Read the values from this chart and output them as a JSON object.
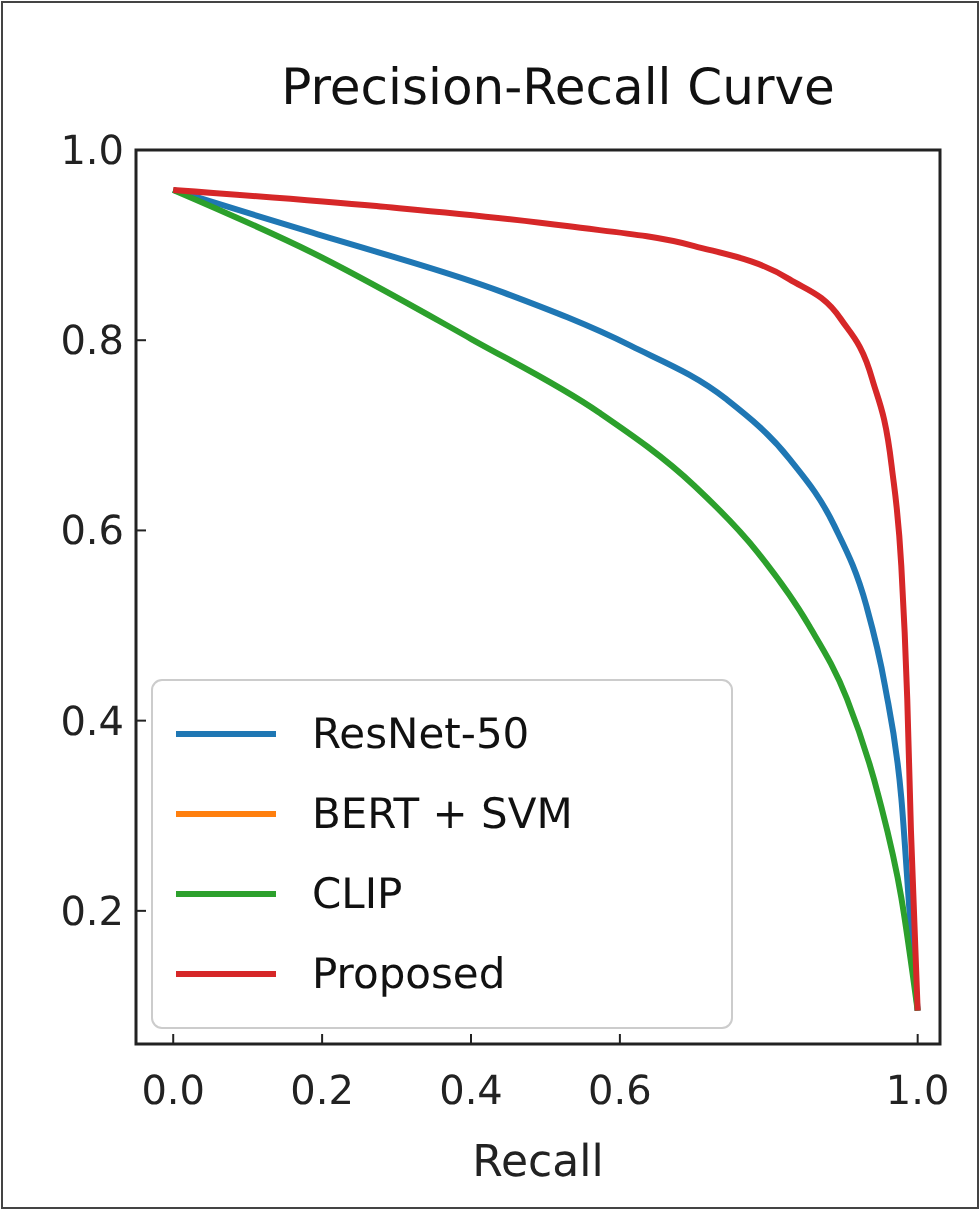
{
  "chart_data": {
    "type": "line",
    "title": "Precision-Recall Curve",
    "xlabel": "Recall",
    "xlim": [
      -0.05,
      1.03
    ],
    "ylim": [
      0.06,
      1.0
    ],
    "xticks": [
      {
        "value": 0,
        "label": "0.0"
      },
      0.2,
      0.4,
      0.6,
      {
        "value": 1,
        "label": "1.0"
      }
    ],
    "yticks": [
      0.2,
      0.4,
      0.6,
      0.8,
      {
        "value": 1,
        "label": "1.0"
      }
    ],
    "grid": false,
    "legend": "bottom left",
    "line_style": "solid",
    "marker": "none",
    "series": [
      {
        "name": "ResNet-50",
        "color": "#1f77b4",
        "x": [
          0,
          0.187,
          0.444,
          0.615,
          0.743,
          0.828,
          0.888,
          0.931,
          0.956,
          0.978,
          0.991,
          1.0
        ],
        "values": [
          0.958,
          0.913,
          0.85,
          0.794,
          0.738,
          0.675,
          0.605,
          0.521,
          0.437,
          0.319,
          0.179,
          0.095
        ]
      },
      {
        "name": "BERT + SVM",
        "color": "#ff7f0e"
      },
      {
        "name": "CLIP",
        "color": "#2ca02c",
        "x": [
          0,
          0.187,
          0.401,
          0.572,
          0.7,
          0.785,
          0.854,
          0.905,
          0.948,
          0.978,
          1.0
        ],
        "values": [
          0.958,
          0.892,
          0.801,
          0.724,
          0.647,
          0.577,
          0.5,
          0.423,
          0.319,
          0.214,
          0.095
        ]
      },
      {
        "name": "Proposed",
        "color": "#d62728",
        "x": [
          0,
          0.273,
          0.529,
          0.7,
          0.828,
          0.897,
          0.939,
          0.965,
          0.978,
          0.986,
          0.991,
          1.0
        ],
        "values": [
          0.958,
          0.941,
          0.92,
          0.899,
          0.864,
          0.822,
          0.759,
          0.668,
          0.563,
          0.423,
          0.284,
          0.095
        ]
      }
    ]
  }
}
